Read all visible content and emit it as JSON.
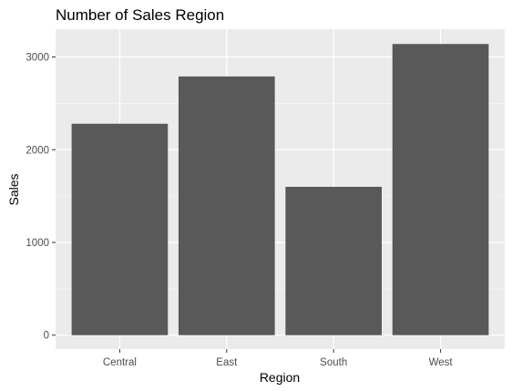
{
  "chart_data": {
    "type": "bar",
    "title": "Number of Sales Region",
    "xlabel": "Region",
    "ylabel": "Sales",
    "categories": [
      "Central",
      "East",
      "South",
      "West"
    ],
    "values": [
      2280,
      2790,
      1600,
      3140
    ],
    "yticks": [
      0,
      1000,
      2000,
      3000
    ],
    "ylim": [
      -150,
      3300
    ],
    "grid": true,
    "legend": "none",
    "colors": {
      "bar": "#595959",
      "panel": "#ebebeb",
      "grid_major": "#ffffff",
      "background": "#ffffff"
    }
  }
}
